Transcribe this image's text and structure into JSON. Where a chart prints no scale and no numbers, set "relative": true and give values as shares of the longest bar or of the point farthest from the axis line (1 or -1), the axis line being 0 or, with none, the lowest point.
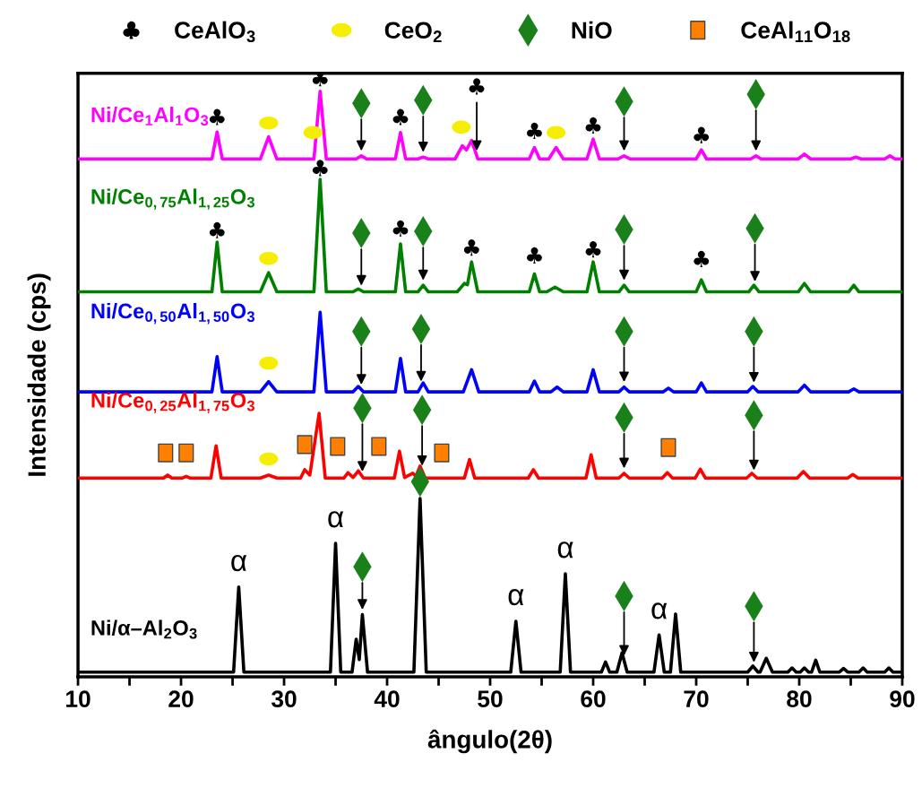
{
  "chart_data": {
    "type": "line",
    "relative": true,
    "xlabel": "ângulo(2θ)",
    "ylabel": "Intensidade (cps)",
    "legend": "top",
    "xlim": [
      10,
      90
    ],
    "xticks": [
      10,
      {
        "value": 15,
        "label": null
      },
      20,
      {
        "value": 25,
        "label": null
      },
      30,
      {
        "value": 35,
        "label": null
      },
      40,
      {
        "value": 45,
        "label": null
      },
      50,
      {
        "value": 55,
        "label": null
      },
      60,
      {
        "value": 65,
        "label": null
      },
      70,
      {
        "value": 75,
        "label": null
      },
      80,
      {
        "value": 85,
        "label": null
      },
      90
    ],
    "series": [
      {
        "name": "Ni/Ce$_{1}$Al$_{1}$O$_{3}$",
        "color": "#ff00ff",
        "x": [
          10,
          23.0,
          23.5,
          24.0,
          27.7,
          28.5,
          29.3,
          32.9,
          33.5,
          34.1,
          37.0,
          37.5,
          38.0,
          40.8,
          41.3,
          41.8,
          43.0,
          43.5,
          44.0,
          46.6,
          47.3,
          47.7,
          48.2,
          48.8,
          53.8,
          54.3,
          54.8,
          55.7,
          56.4,
          57.1,
          59.4,
          60.0,
          60.6,
          62.4,
          63.0,
          63.6,
          70.0,
          70.5,
          71.0,
          75.3,
          75.8,
          76.3,
          79.9,
          80.5,
          81.1,
          85.0,
          85.5,
          86.0,
          88.3,
          88.8,
          89.3,
          90
        ],
        "values": [
          0.865,
          0.865,
          0.91,
          0.865,
          0.865,
          0.902,
          0.865,
          0.865,
          0.978,
          0.865,
          0.865,
          0.87,
          0.865,
          0.865,
          0.909,
          0.865,
          0.865,
          0.868,
          0.865,
          0.865,
          0.887,
          0.88,
          0.896,
          0.865,
          0.865,
          0.884,
          0.865,
          0.865,
          0.884,
          0.865,
          0.865,
          0.898,
          0.865,
          0.865,
          0.87,
          0.865,
          0.865,
          0.88,
          0.865,
          0.865,
          0.87,
          0.865,
          0.865,
          0.873,
          0.865,
          0.865,
          0.868,
          0.865,
          0.865,
          0.87,
          0.865,
          0.865
        ]
      },
      {
        "name": "Ni/Ce$_{0,75}$Al$_{1,25}$O$_{3}$",
        "color": "#008000",
        "x": [
          10,
          23.0,
          23.5,
          24.0,
          27.7,
          28.5,
          29.3,
          32.9,
          33.5,
          34.1,
          36.7,
          37.2,
          37.7,
          40.8,
          41.3,
          41.8,
          43.0,
          43.5,
          44.0,
          46.8,
          47.5,
          47.8,
          48.2,
          48.8,
          53.8,
          54.3,
          54.8,
          55.5,
          56.3,
          57.1,
          59.4,
          60.0,
          60.6,
          62.5,
          63.0,
          63.5,
          70.0,
          70.5,
          71.0,
          75.1,
          75.6,
          76.1,
          79.9,
          80.5,
          81.1,
          84.8,
          85.3,
          85.8,
          90
        ],
        "values": [
          0.643,
          0.643,
          0.726,
          0.643,
          0.643,
          0.675,
          0.643,
          0.643,
          0.831,
          0.643,
          0.643,
          0.648,
          0.643,
          0.643,
          0.723,
          0.643,
          0.643,
          0.654,
          0.643,
          0.643,
          0.657,
          0.655,
          0.693,
          0.643,
          0.643,
          0.673,
          0.643,
          0.643,
          0.651,
          0.643,
          0.643,
          0.693,
          0.643,
          0.643,
          0.654,
          0.643,
          0.643,
          0.663,
          0.643,
          0.643,
          0.654,
          0.643,
          0.643,
          0.657,
          0.643,
          0.643,
          0.654,
          0.643,
          0.643
        ]
      },
      {
        "name": "Ni/Ce$_{0,50}$Al$_{1,50}$O$_{3}$",
        "color": "#0000ff",
        "x": [
          10,
          23.0,
          23.5,
          24.0,
          27.7,
          28.5,
          29.3,
          32.9,
          33.5,
          34.1,
          36.7,
          37.2,
          37.7,
          40.8,
          41.3,
          41.8,
          43.0,
          43.5,
          44.0,
          47.4,
          48.2,
          48.9,
          53.8,
          54.3,
          54.8,
          55.9,
          56.5,
          57.1,
          59.4,
          60.0,
          60.6,
          62.5,
          63.0,
          63.5,
          66.8,
          67.3,
          67.8,
          70.0,
          70.5,
          71.0,
          75.0,
          75.5,
          76.0,
          79.9,
          80.5,
          81.1,
          84.8,
          85.3,
          85.8,
          90
        ],
        "values": [
          0.476,
          0.476,
          0.535,
          0.476,
          0.476,
          0.493,
          0.476,
          0.476,
          0.609,
          0.476,
          0.476,
          0.485,
          0.476,
          0.476,
          0.532,
          0.476,
          0.476,
          0.491,
          0.476,
          0.476,
          0.513,
          0.476,
          0.476,
          0.494,
          0.476,
          0.476,
          0.484,
          0.476,
          0.476,
          0.513,
          0.476,
          0.476,
          0.484,
          0.476,
          0.476,
          0.482,
          0.476,
          0.476,
          0.491,
          0.476,
          0.476,
          0.485,
          0.476,
          0.476,
          0.487,
          0.476,
          0.476,
          0.481,
          0.476,
          0.476
        ]
      },
      {
        "name": "Ni/Ce$_{0,25}$Al$_{1,75}$O$_{3}$",
        "color": "#ff0000",
        "x": [
          10,
          18.3,
          18.7,
          19.1,
          20.1,
          20.5,
          20.9,
          22.9,
          23.4,
          23.9,
          27.7,
          28.5,
          29.3,
          31.6,
          32.0,
          32.5,
          33.4,
          34.0,
          35.8,
          36.2,
          36.7,
          37.2,
          37.7,
          40.7,
          41.2,
          41.7,
          42.5,
          42.8,
          43.2,
          43.7,
          47.5,
          48.0,
          48.5,
          53.7,
          54.2,
          54.7,
          59.3,
          59.8,
          60.3,
          62.5,
          63.0,
          63.5,
          66.7,
          67.2,
          67.7,
          69.9,
          70.4,
          70.9,
          74.9,
          75.4,
          75.9,
          79.8,
          80.4,
          81.0,
          84.7,
          85.2,
          85.7,
          90
        ],
        "values": [
          0.332,
          0.332,
          0.337,
          0.332,
          0.332,
          0.335,
          0.332,
          0.332,
          0.386,
          0.332,
          0.332,
          0.337,
          0.332,
          0.332,
          0.346,
          0.337,
          0.44,
          0.332,
          0.332,
          0.341,
          0.333,
          0.344,
          0.332,
          0.332,
          0.377,
          0.333,
          0.34,
          0.335,
          0.352,
          0.332,
          0.332,
          0.363,
          0.332,
          0.332,
          0.346,
          0.332,
          0.332,
          0.371,
          0.332,
          0.332,
          0.34,
          0.332,
          0.332,
          0.341,
          0.332,
          0.332,
          0.347,
          0.332,
          0.332,
          0.34,
          0.332,
          0.332,
          0.343,
          0.332,
          0.332,
          0.338,
          0.332,
          0.332
        ]
      },
      {
        "name": "Ni/α–Al$_{2}$O$_{3}$",
        "color": "#000000",
        "x": [
          10,
          25.1,
          25.6,
          26.1,
          34.5,
          35.0,
          35.5,
          36.6,
          37.0,
          37.3,
          37.6,
          38.1,
          42.6,
          43.2,
          43.8,
          52.0,
          52.5,
          53.0,
          56.8,
          57.3,
          57.8,
          60.8,
          61.2,
          61.6,
          62.3,
          62.8,
          63.3,
          65.9,
          66.4,
          66.9,
          67.5,
          68.0,
          68.5,
          75.0,
          75.5,
          76.0,
          76.2,
          76.8,
          77.4,
          78.9,
          79.3,
          79.7,
          80.1,
          80.5,
          80.9,
          81.2,
          81.6,
          82.0,
          83.9,
          84.3,
          84.7,
          85.8,
          86.2,
          86.6,
          88.3,
          88.7,
          89.1,
          90
        ],
        "values": [
          0.008,
          0.008,
          0.15,
          0.008,
          0.008,
          0.223,
          0.008,
          0.008,
          0.063,
          0.029,
          0.104,
          0.008,
          0.008,
          0.298,
          0.008,
          0.008,
          0.093,
          0.008,
          0.008,
          0.172,
          0.008,
          0.008,
          0.025,
          0.008,
          0.008,
          0.04,
          0.008,
          0.008,
          0.07,
          0.008,
          0.008,
          0.105,
          0.008,
          0.008,
          0.018,
          0.008,
          0.008,
          0.031,
          0.008,
          0.008,
          0.015,
          0.008,
          0.008,
          0.015,
          0.008,
          0.008,
          0.028,
          0.008,
          0.008,
          0.014,
          0.008,
          0.008,
          0.015,
          0.008,
          0.008,
          0.015,
          0.008,
          0.008
        ]
      },
      {
        "type": "scatter",
        "name": "CeAlO$_{3}$",
        "color": "#000000",
        "x": [
          23.5,
          33.5,
          41.3,
          48.7,
          54.3,
          60,
          70.5,
          23.5,
          33.5,
          41.3,
          48.2,
          54.3,
          60,
          70.5
        ],
        "values": [
          0.935,
          1.0,
          0.935,
          0.986,
          0.912,
          0.921,
          0.905,
          0.746,
          0.85,
          0.749,
          0.717,
          0.704,
          0.714,
          0.698
        ]
      },
      {
        "type": "scatter",
        "name": "CeO$_{2}$",
        "color": "#f5ee00",
        "marker": "circle",
        "x": [
          28.5,
          32.8,
          47.2,
          56.4,
          28.5,
          28.5,
          28.5
        ],
        "values": [
          0.925,
          0.909,
          0.918,
          0.909,
          0.699,
          0.524,
          0.364
        ]
      },
      {
        "type": "scatter",
        "name": "NiO",
        "color": "#1a801a",
        "marker": "diamond",
        "x": [
          37.5,
          43.5,
          63,
          75.8,
          37.5,
          43.5,
          63,
          75.7,
          37.5,
          43.3,
          63,
          75.6,
          37.6,
          43.4,
          63,
          75.6,
          37.6,
          43.2,
          63,
          75.6
        ],
        "values": [
          0.958,
          0.963,
          0.961,
          0.973,
          0.741,
          0.744,
          0.747,
          0.749,
          0.577,
          0.581,
          0.577,
          0.577,
          0.449,
          0.446,
          0.433,
          0.437,
          0.184,
          0.326,
          0.135,
          0.118
        ]
      },
      {
        "type": "scatter",
        "name": "CeAl$_{11}$O$_{18}$",
        "color": "#ff8000",
        "marker": "square",
        "x": [
          18.5,
          20.5,
          32,
          35.2,
          39.2,
          45.3,
          67.3
        ],
        "values": [
          0.374,
          0.374,
          0.388,
          0.385,
          0.385,
          0.374,
          0.383
        ]
      }
    ],
    "annotations": [
      {
        "text": "α",
        "x": 25.6,
        "y": 0.15
      },
      {
        "text": "α",
        "x": 35.0,
        "y": 0.223
      },
      {
        "text": "α",
        "x": 52.5,
        "y": 0.093
      },
      {
        "text": "α",
        "x": 57.3,
        "y": 0.172
      },
      {
        "text": "α",
        "x": 66.4,
        "y": 0.07
      }
    ]
  }
}
